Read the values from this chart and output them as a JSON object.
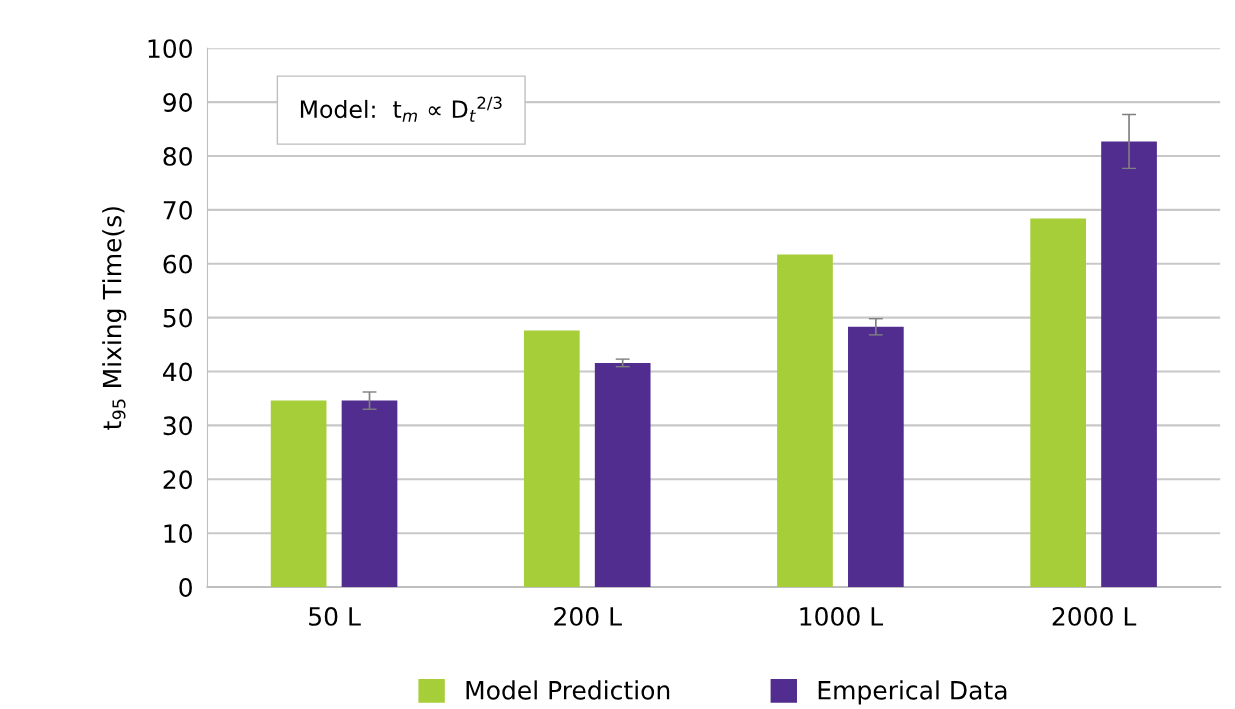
{
  "chart_data": {
    "type": "bar",
    "ylabel": "t$_{95}$ Mixing Time(s)",
    "categories": [
      "50 L",
      "200 L",
      "1000 L",
      "2000 L"
    ],
    "series": [
      {
        "name": "Model Prediction",
        "color": "#a6ce39",
        "values": [
          34.6,
          47.6,
          61.7,
          68.4
        ]
      },
      {
        "name": "Emperical Data",
        "color": "#512d8f",
        "values": [
          34.6,
          41.6,
          48.3,
          82.7
        ],
        "errors": [
          1.6,
          0.7,
          1.5,
          5.0
        ]
      }
    ],
    "ylim": [
      0,
      100
    ],
    "yticks": [
      0,
      10,
      20,
      30,
      40,
      50,
      60,
      70,
      80,
      90,
      100
    ],
    "grid": "y",
    "legend": "bottom",
    "annotations": [
      "Model:  t$_{m}$ ∝ D$_{t}$$^{2/3}$"
    ]
  }
}
